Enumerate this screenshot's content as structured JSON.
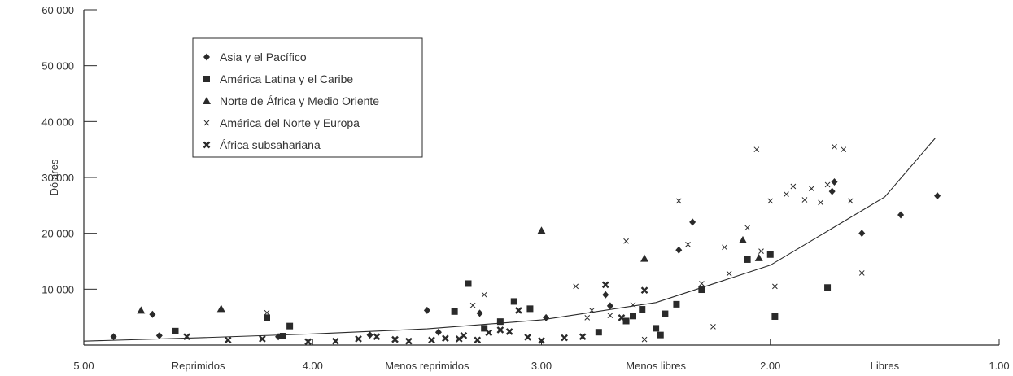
{
  "chart_data": {
    "type": "scatter",
    "title": "",
    "xlabel": "",
    "ylabel": "Dólares",
    "xlim": [
      5.0,
      1.0
    ],
    "x_reversed": true,
    "ylim": [
      0,
      60000
    ],
    "grid": false,
    "legend_placement": "top-left",
    "x_ticks": [
      {
        "value": 5.0,
        "label": "5.00"
      },
      {
        "value": 4.0,
        "label": "4.00"
      },
      {
        "value": 3.0,
        "label": "3.00"
      },
      {
        "value": 2.0,
        "label": "2.00"
      },
      {
        "value": 1.0,
        "label": "1.00"
      }
    ],
    "x_category_labels": [
      {
        "x": 4.5,
        "label": "Reprimidos"
      },
      {
        "x": 3.5,
        "label": "Menos reprimidos"
      },
      {
        "x": 2.5,
        "label": "Menos libres"
      },
      {
        "x": 1.5,
        "label": "Libres"
      }
    ],
    "y_ticks": [
      {
        "value": 10000,
        "label": "10 000"
      },
      {
        "value": 20000,
        "label": "20 000"
      },
      {
        "value": 30000,
        "label": "30 000"
      },
      {
        "value": 40000,
        "label": "40 000"
      },
      {
        "value": 50000,
        "label": "50 000"
      },
      {
        "value": 60000,
        "label": "60 000"
      }
    ],
    "series": [
      {
        "name": "Asia y el Pacífico",
        "marker": "diamond",
        "color": "#2a2a2a",
        "points": [
          [
            4.87,
            1500
          ],
          [
            4.7,
            5500
          ],
          [
            4.67,
            1700
          ],
          [
            4.15,
            1500
          ],
          [
            3.75,
            1800
          ],
          [
            3.5,
            6200
          ],
          [
            3.45,
            2300
          ],
          [
            3.27,
            5700
          ],
          [
            2.98,
            4900
          ],
          [
            2.72,
            9000
          ],
          [
            2.7,
            7000
          ],
          [
            2.4,
            17000
          ],
          [
            2.34,
            22000
          ],
          [
            1.73,
            27500
          ],
          [
            1.72,
            29200
          ],
          [
            1.6,
            20000
          ],
          [
            1.43,
            23300
          ],
          [
            1.27,
            26700
          ]
        ]
      },
      {
        "name": "América Latina y el Caribe",
        "marker": "square",
        "color": "#2a2a2a",
        "points": [
          [
            4.6,
            2500
          ],
          [
            4.2,
            4900
          ],
          [
            4.1,
            3400
          ],
          [
            4.13,
            1600
          ],
          [
            3.38,
            6000
          ],
          [
            3.32,
            11000
          ],
          [
            3.25,
            3000
          ],
          [
            3.18,
            4200
          ],
          [
            3.12,
            7800
          ],
          [
            3.05,
            6500
          ],
          [
            2.75,
            2300
          ],
          [
            2.63,
            4300
          ],
          [
            2.6,
            5200
          ],
          [
            2.56,
            6400
          ],
          [
            2.5,
            3000
          ],
          [
            2.48,
            1800
          ],
          [
            2.46,
            5600
          ],
          [
            2.41,
            7300
          ],
          [
            2.3,
            9900
          ],
          [
            2.1,
            15300
          ],
          [
            2.0,
            16200
          ],
          [
            1.98,
            5100
          ],
          [
            1.75,
            10300
          ]
        ]
      },
      {
        "name": "Norte de África y Medio Oriente",
        "marker": "triangle",
        "color": "#2a2a2a",
        "points": [
          [
            4.75,
            6200
          ],
          [
            4.4,
            6500
          ],
          [
            3.0,
            20500
          ],
          [
            2.55,
            15500
          ],
          [
            2.12,
            18800
          ],
          [
            2.05,
            15600
          ]
        ]
      },
      {
        "name": "América del Norte y Europa",
        "marker": "x",
        "color": "#2a2a2a",
        "points": [
          [
            4.2,
            5800
          ],
          [
            3.25,
            9000
          ],
          [
            3.3,
            7100
          ],
          [
            3.05,
            6500
          ],
          [
            2.85,
            10500
          ],
          [
            2.78,
            6200
          ],
          [
            2.7,
            5300
          ],
          [
            2.63,
            18600
          ],
          [
            2.6,
            7200
          ],
          [
            2.4,
            25800
          ],
          [
            2.36,
            18000
          ],
          [
            2.3,
            11000
          ],
          [
            2.25,
            3300
          ],
          [
            2.2,
            17500
          ],
          [
            2.18,
            12800
          ],
          [
            2.1,
            21000
          ],
          [
            2.06,
            35000
          ],
          [
            2.04,
            16800
          ],
          [
            2.0,
            25800
          ],
          [
            1.98,
            10500
          ],
          [
            1.93,
            27000
          ],
          [
            1.9,
            28400
          ],
          [
            1.85,
            26000
          ],
          [
            1.82,
            28000
          ],
          [
            1.78,
            25500
          ],
          [
            1.75,
            28700
          ],
          [
            1.72,
            35500
          ],
          [
            1.68,
            35000
          ],
          [
            1.65,
            25800
          ],
          [
            1.6,
            12900
          ],
          [
            2.55,
            1000
          ],
          [
            2.8,
            4900
          ]
        ]
      },
      {
        "name": "África subsahariana",
        "marker": "xbold",
        "color": "#2a2a2a",
        "points": [
          [
            4.55,
            1500
          ],
          [
            4.37,
            900
          ],
          [
            4.22,
            1100
          ],
          [
            4.02,
            600
          ],
          [
            3.9,
            700
          ],
          [
            3.8,
            1100
          ],
          [
            3.72,
            1500
          ],
          [
            3.64,
            1000
          ],
          [
            3.58,
            700
          ],
          [
            3.48,
            900
          ],
          [
            3.42,
            1200
          ],
          [
            3.36,
            1100
          ],
          [
            3.28,
            900
          ],
          [
            3.23,
            2200
          ],
          [
            3.18,
            2700
          ],
          [
            3.1,
            6200
          ],
          [
            3.06,
            1400
          ],
          [
            3.0,
            800
          ],
          [
            2.9,
            1300
          ],
          [
            2.82,
            1500
          ],
          [
            2.72,
            10800
          ],
          [
            2.65,
            4900
          ],
          [
            2.55,
            9800
          ],
          [
            3.34,
            1700
          ],
          [
            3.14,
            2400
          ]
        ]
      }
    ],
    "trendline": {
      "type": "exponential",
      "points": [
        [
          5.0,
          700
        ],
        [
          4.5,
          1300
        ],
        [
          4.0,
          2000
        ],
        [
          3.5,
          2900
        ],
        [
          3.0,
          4500
        ],
        [
          2.5,
          7600
        ],
        [
          2.0,
          14300
        ],
        [
          1.5,
          26500
        ],
        [
          1.28,
          37000
        ]
      ]
    }
  }
}
